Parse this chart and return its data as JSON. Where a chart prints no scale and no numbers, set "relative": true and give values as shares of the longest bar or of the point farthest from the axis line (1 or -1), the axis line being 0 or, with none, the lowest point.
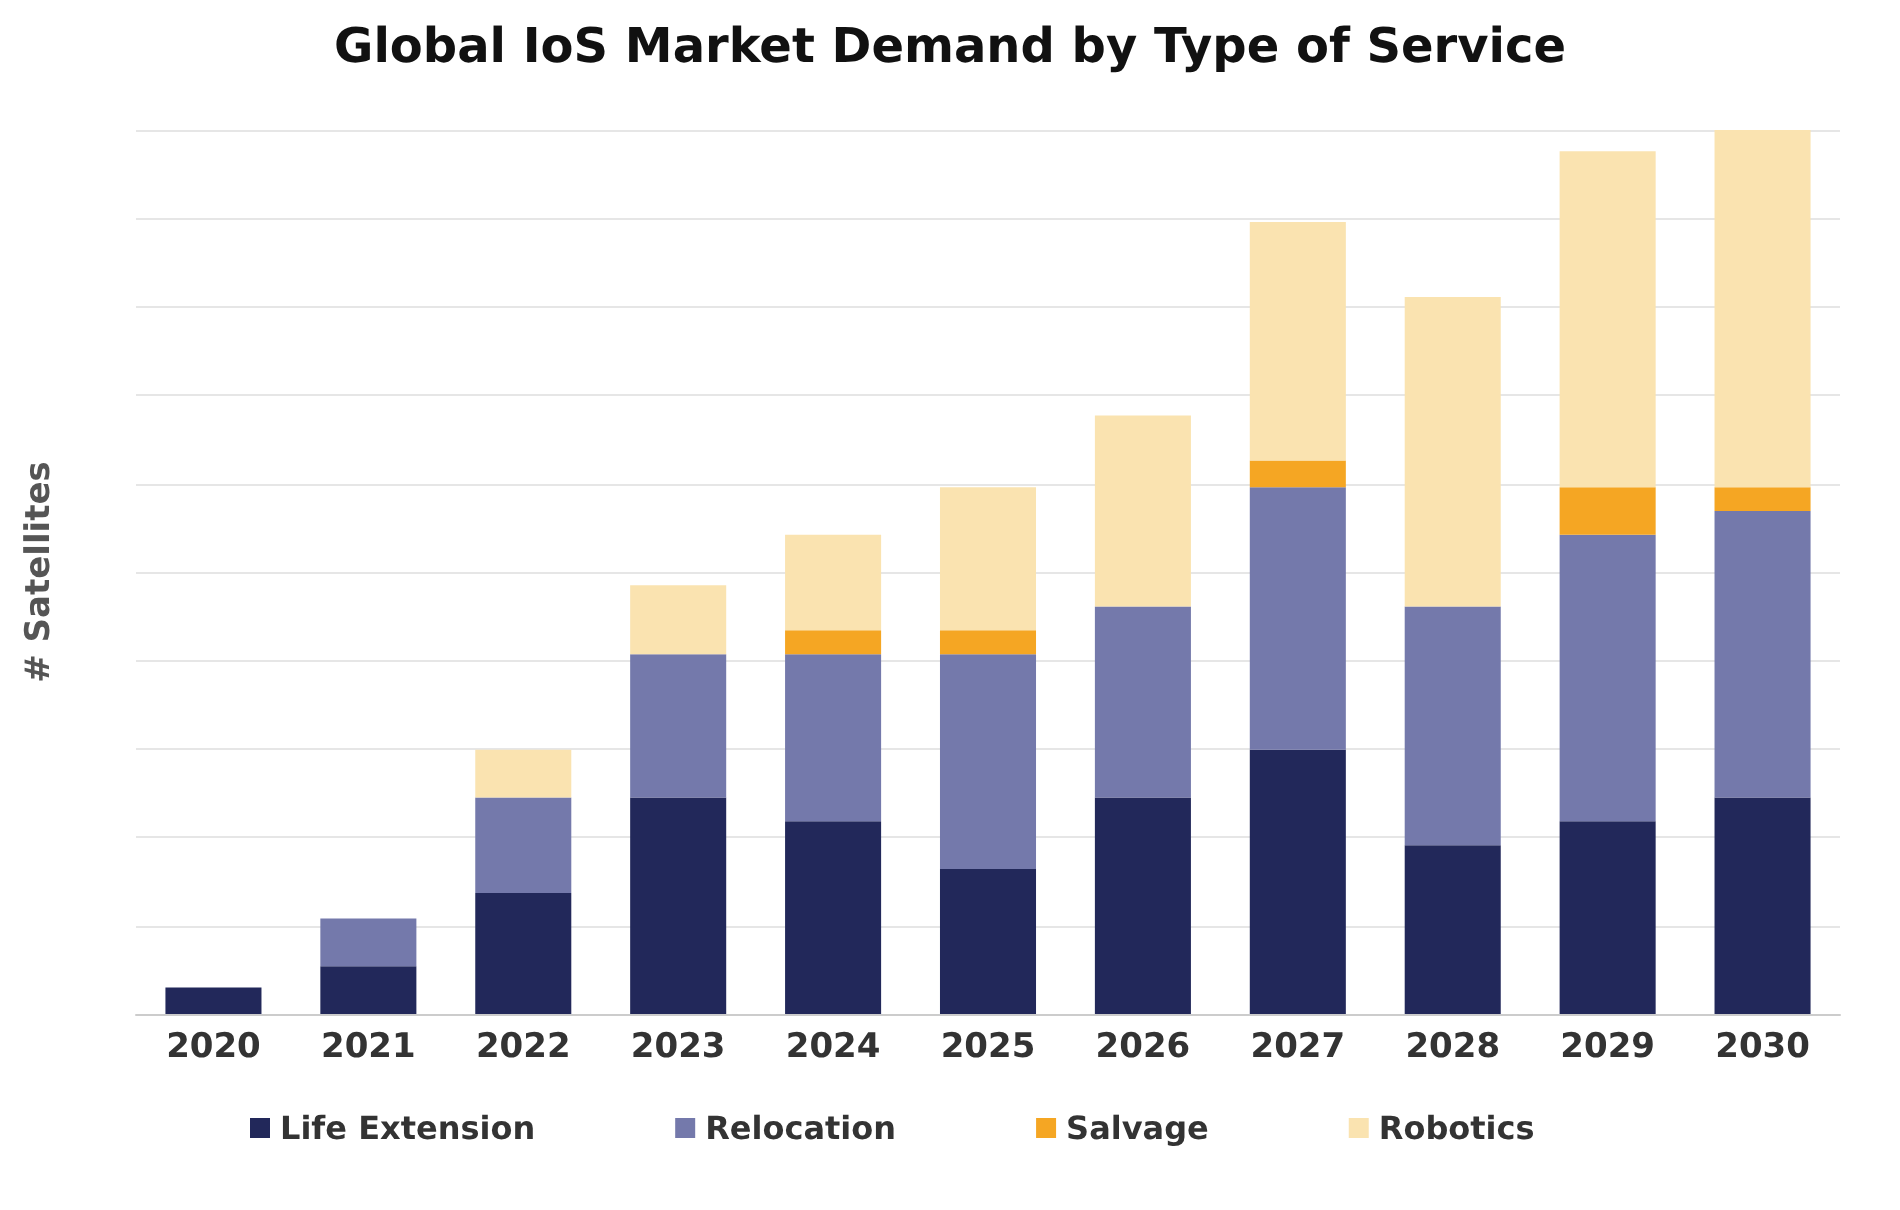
{
  "chart_data": {
    "type": "bar",
    "title": "Global IoS Market Demand by Type of Service",
    "ylabel": "# Satellites",
    "categories": [
      "2020",
      "2021",
      "2022",
      "2023",
      "2024",
      "2025",
      "2026",
      "2027",
      "2028",
      "2029",
      "2030"
    ],
    "stacked": true,
    "relative": true,
    "grid": "y",
    "legend": "bottom",
    "series": [
      {
        "name": "Life Extension",
        "color": "#22285a",
        "values": [
          0.03,
          0.054,
          0.137,
          0.245,
          0.218,
          0.164,
          0.245,
          0.299,
          0.191,
          0.218,
          0.245
        ]
      },
      {
        "name": "Relocation",
        "color": "#7479ab",
        "values": [
          null,
          0.054,
          0.108,
          0.162,
          0.189,
          0.243,
          0.216,
          0.297,
          0.27,
          0.324,
          0.324
        ]
      },
      {
        "name": "Salvage",
        "color": "#f5a623",
        "values": [
          null,
          null,
          null,
          null,
          0.027,
          0.027,
          null,
          0.03,
          null,
          0.054,
          0.027
        ]
      },
      {
        "name": "Robotics",
        "color": "#fae3b0",
        "values": [
          null,
          null,
          0.054,
          0.078,
          0.108,
          0.162,
          0.216,
          0.27,
          0.35,
          0.38,
          0.404
        ]
      }
    ]
  }
}
